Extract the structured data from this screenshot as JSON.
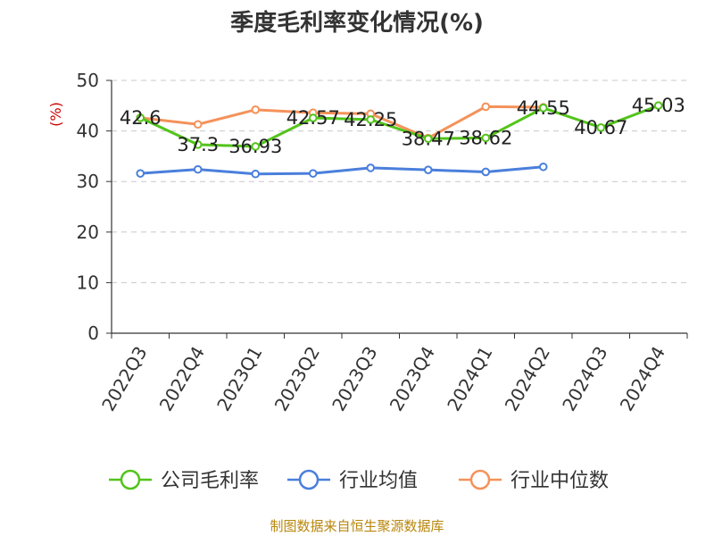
{
  "chart_data": {
    "type": "line",
    "title": "季度毛利率变化情况(%)",
    "ylabel": "(%)",
    "xlabel": "",
    "ylim": [
      0,
      50
    ],
    "yticks": [
      0,
      10,
      20,
      30,
      40,
      50
    ],
    "grid": true,
    "legend_position": "bottom",
    "categories": [
      "2022Q3",
      "2022Q4",
      "2023Q1",
      "2023Q2",
      "2023Q3",
      "2023Q4",
      "2024Q1",
      "2024Q2",
      "2024Q3",
      "2024Q4"
    ],
    "series": [
      {
        "name": "公司毛利率",
        "color": "#52c41a",
        "values": [
          42.6,
          37.3,
          36.93,
          42.57,
          42.25,
          38.47,
          38.62,
          44.55,
          40.67,
          45.03
        ],
        "labels": [
          "42.6",
          "37.3",
          "36.93",
          "42.57",
          "42.25",
          "38.47",
          "38.62",
          "44.55",
          "40.67",
          "45.03"
        ]
      },
      {
        "name": "行业均值",
        "color": "#4a7fdc",
        "values": [
          31.6,
          32.4,
          31.5,
          31.6,
          32.7,
          32.3,
          31.9,
          32.9,
          null,
          null
        ]
      },
      {
        "name": "行业中位数",
        "color": "#f4925a",
        "values": [
          42.6,
          41.3,
          44.2,
          43.6,
          43.4,
          38.6,
          44.8,
          44.7,
          null,
          null
        ]
      }
    ]
  },
  "source": "制图数据来自恒生聚源数据库"
}
